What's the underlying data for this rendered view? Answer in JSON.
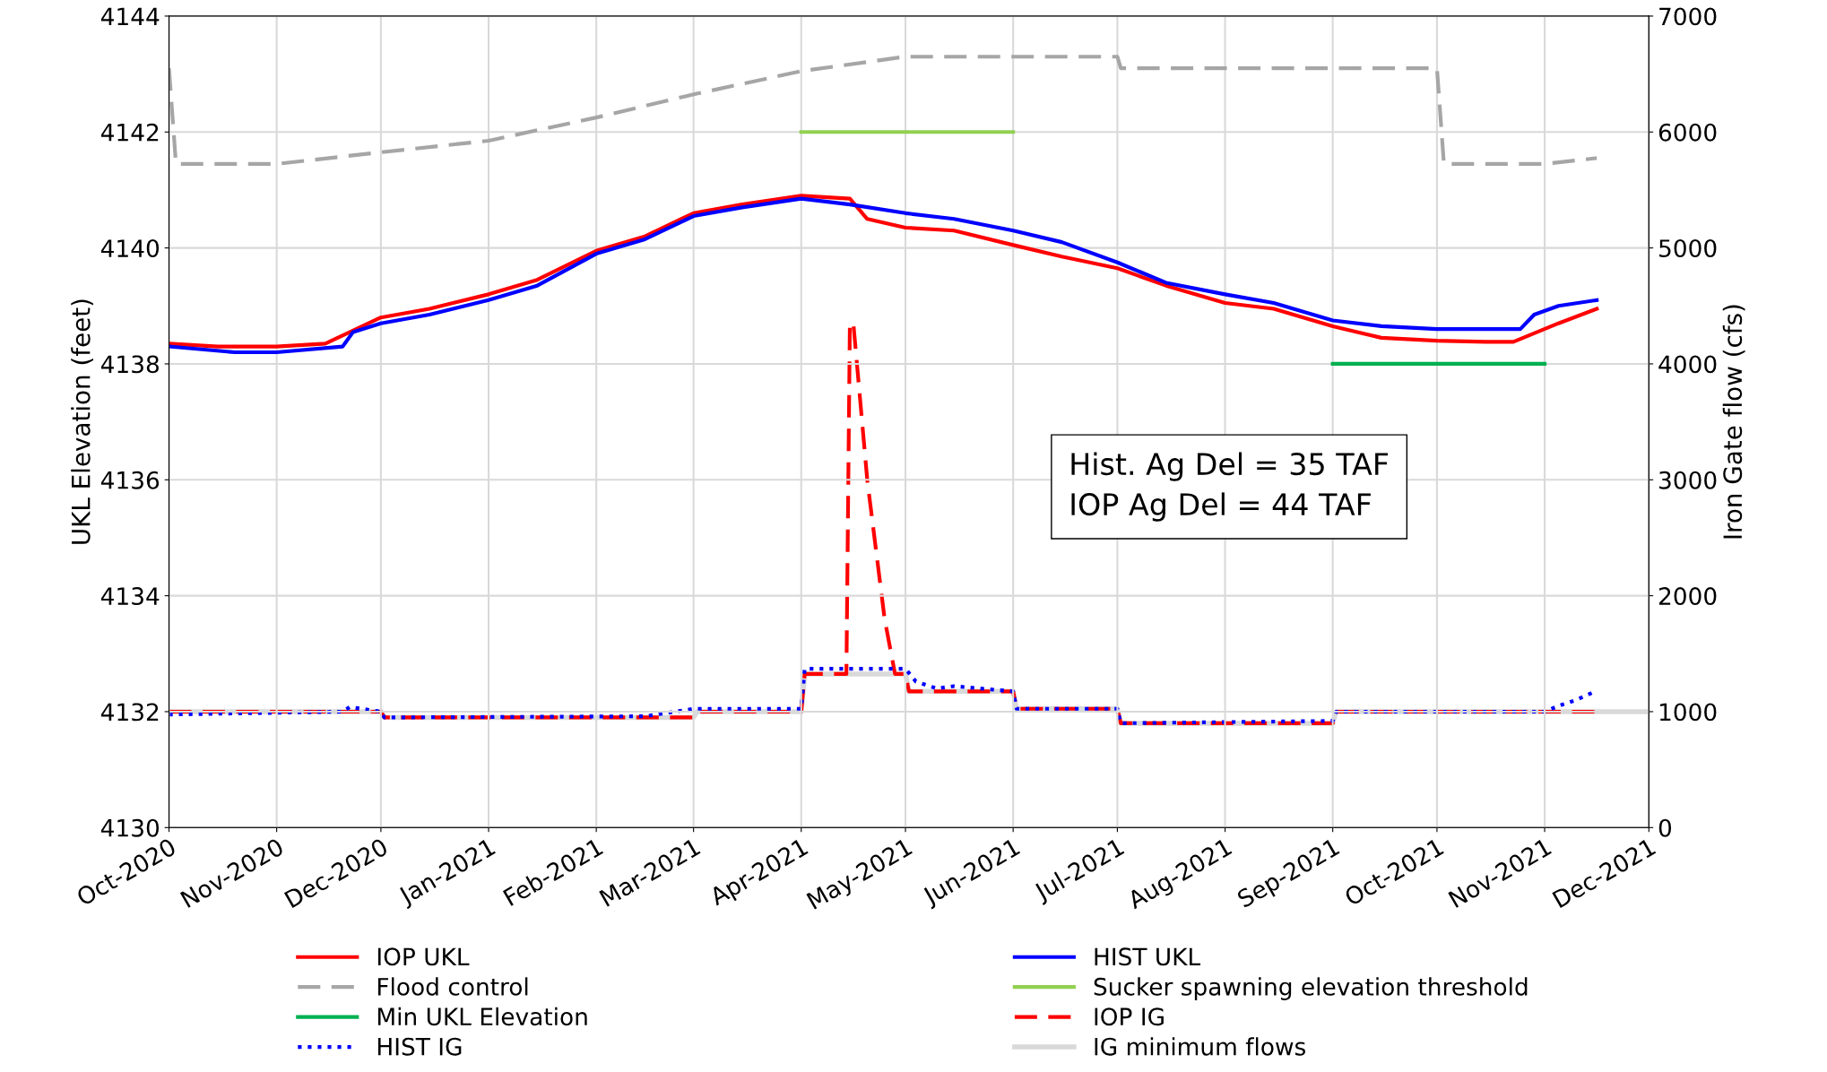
{
  "chart_data": {
    "type": "line",
    "ylabel": "UKL Elevation (feet)",
    "y2label": "Iron Gate flow (cfs)",
    "xlim": [
      "2020-10-01",
      "2021-12-01"
    ],
    "xticks": [
      {
        "value": "2020-10-01",
        "label": "Oct-2020"
      },
      {
        "value": "2020-11-01",
        "label": "Nov-2020"
      },
      {
        "value": "2020-12-01",
        "label": "Dec-2020"
      },
      {
        "value": "2021-01-01",
        "label": "Jan-2021"
      },
      {
        "value": "2021-02-01",
        "label": "Feb-2021"
      },
      {
        "value": "2021-03-01",
        "label": "Mar-2021"
      },
      {
        "value": "2021-04-01",
        "label": "Apr-2021"
      },
      {
        "value": "2021-05-01",
        "label": "May-2021"
      },
      {
        "value": "2021-06-01",
        "label": "Jun-2021"
      },
      {
        "value": "2021-07-01",
        "label": "Jul-2021"
      },
      {
        "value": "2021-08-01",
        "label": "Aug-2021"
      },
      {
        "value": "2021-09-01",
        "label": "Sep-2021"
      },
      {
        "value": "2021-10-01",
        "label": "Oct-2021"
      },
      {
        "value": "2021-11-01",
        "label": "Nov-2021"
      },
      {
        "value": "2021-12-01",
        "label": "Dec-2021"
      }
    ],
    "ylim": [
      4130,
      4144
    ],
    "yticks": [
      4130,
      4132,
      4134,
      4136,
      4138,
      4140,
      4142,
      4144
    ],
    "y2lim": [
      0,
      7000
    ],
    "y2ticks": [
      0,
      1000,
      2000,
      3000,
      4000,
      5000,
      6000,
      7000
    ],
    "grid": true,
    "legend": "bottom",
    "marker": "none",
    "annotations": [
      "Hist. Ag Del = 35 TAF",
      "IOP Ag Del = 44 TAF"
    ],
    "series": [
      {
        "name": "IOP UKL",
        "color": "#ff0000",
        "line_style": "solid",
        "x": [
          "2020-10-01",
          "2020-10-15",
          "2020-11-01",
          "2020-11-15",
          "2020-12-01",
          "2020-12-15",
          "2021-01-01",
          "2021-01-15",
          "2021-02-01",
          "2021-02-15",
          "2021-03-01",
          "2021-03-15",
          "2021-04-01",
          "2021-04-15",
          "2021-04-20",
          "2021-05-01",
          "2021-05-15",
          "2021-06-01",
          "2021-06-15",
          "2021-07-01",
          "2021-07-15",
          "2021-08-01",
          "2021-08-15",
          "2021-09-01",
          "2021-09-15",
          "2021-10-01",
          "2021-10-15",
          "2021-10-23",
          "2021-11-05",
          "2021-11-16"
        ],
        "values": [
          4138.35,
          4138.3,
          4138.3,
          4138.35,
          4138.8,
          4138.95,
          4139.2,
          4139.45,
          4139.95,
          4140.2,
          4140.6,
          4140.75,
          4140.9,
          4140.85,
          4140.5,
          4140.35,
          4140.3,
          4140.05,
          4139.85,
          4139.65,
          4139.35,
          4139.05,
          4138.95,
          4138.65,
          4138.45,
          4138.4,
          4138.38,
          4138.38,
          4138.7,
          4138.95
        ]
      },
      {
        "name": "HIST UKL",
        "color": "#0000ff",
        "line_style": "solid",
        "x": [
          "2020-10-01",
          "2020-10-20",
          "2020-11-01",
          "2020-11-20",
          "2020-11-23",
          "2020-12-01",
          "2020-12-15",
          "2021-01-01",
          "2021-01-15",
          "2021-02-01",
          "2021-02-15",
          "2021-03-01",
          "2021-03-15",
          "2021-04-01",
          "2021-04-15",
          "2021-05-01",
          "2021-05-15",
          "2021-06-01",
          "2021-06-15",
          "2021-07-01",
          "2021-07-15",
          "2021-08-01",
          "2021-08-15",
          "2021-09-01",
          "2021-09-15",
          "2021-10-01",
          "2021-10-15",
          "2021-10-25",
          "2021-10-29",
          "2021-11-05",
          "2021-11-16"
        ],
        "values": [
          4138.3,
          4138.2,
          4138.2,
          4138.3,
          4138.55,
          4138.7,
          4138.85,
          4139.1,
          4139.35,
          4139.9,
          4140.15,
          4140.55,
          4140.7,
          4140.85,
          4140.75,
          4140.6,
          4140.5,
          4140.3,
          4140.1,
          4139.75,
          4139.4,
          4139.2,
          4139.05,
          4138.75,
          4138.65,
          4138.6,
          4138.6,
          4138.6,
          4138.85,
          4139.0,
          4139.1
        ]
      },
      {
        "name": "Flood control",
        "color": "#a6a6a6",
        "line_style": "dashed",
        "x": [
          "2020-10-01",
          "2020-10-03",
          "2020-11-01",
          "2020-12-01",
          "2021-01-01",
          "2021-02-01",
          "2021-03-01",
          "2021-04-01",
          "2021-05-01",
          "2021-07-01",
          "2021-07-02",
          "2021-10-01",
          "2021-10-03",
          "2021-11-01",
          "2021-11-16"
        ],
        "values": [
          4143.1,
          4141.45,
          4141.45,
          4141.65,
          4141.85,
          4142.25,
          4142.65,
          4143.05,
          4143.3,
          4143.3,
          4143.1,
          4143.1,
          4141.45,
          4141.45,
          4141.55
        ]
      },
      {
        "name": "Sucker spawning elevation threshold",
        "color": "#92d050",
        "line_style": "solid",
        "x": [
          "2021-04-01",
          "2021-06-01"
        ],
        "values": [
          4142,
          4142
        ]
      },
      {
        "name": "Min UKL Elevation",
        "color": "#00b050",
        "line_style": "solid",
        "x": [
          "2021-09-01",
          "2021-11-01"
        ],
        "values": [
          4138,
          4138
        ]
      },
      {
        "name": "IOP IG",
        "color": "#ff0000",
        "line_style": "dashed",
        "axis": "y2",
        "x": [
          "2020-10-01",
          "2020-12-01",
          "2020-12-02",
          "2021-03-01",
          "2021-03-02",
          "2021-04-01",
          "2021-04-02",
          "2021-04-14",
          "2021-04-15",
          "2021-04-16",
          "2021-04-20",
          "2021-04-25",
          "2021-04-28",
          "2021-05-01",
          "2021-05-02",
          "2021-06-01",
          "2021-06-02",
          "2021-07-01",
          "2021-07-02",
          "2021-09-01",
          "2021-09-02",
          "2021-11-16"
        ],
        "values": [
          1000,
          1000,
          950,
          950,
          1000,
          1000,
          1325,
          1325,
          4350,
          4350,
          3000,
          1800,
          1325,
          1325,
          1175,
          1175,
          1025,
          1025,
          900,
          900,
          1000,
          1000
        ]
      },
      {
        "name": "HIST IG",
        "color": "#0000ff",
        "line_style": "dotted",
        "axis": "y2",
        "x": [
          "2020-10-01",
          "2020-11-20",
          "2020-11-22",
          "2020-12-01",
          "2020-12-02",
          "2021-02-15",
          "2021-03-01",
          "2021-04-01",
          "2021-04-02",
          "2021-05-01",
          "2021-05-04",
          "2021-05-10",
          "2021-05-15",
          "2021-06-01",
          "2021-06-02",
          "2021-07-01",
          "2021-07-02",
          "2021-08-01",
          "2021-09-01",
          "2021-09-02",
          "2021-11-01",
          "2021-11-05",
          "2021-11-10",
          "2021-11-16"
        ],
        "values": [
          975,
          1000,
          1040,
          1000,
          950,
          960,
          1025,
          1025,
          1370,
          1370,
          1260,
          1200,
          1220,
          1175,
          1025,
          1025,
          900,
          910,
          920,
          1000,
          1000,
          1050,
          1100,
          1180
        ]
      },
      {
        "name": "IG minimum flows",
        "color": "#d9d9d9",
        "line_style": "solid",
        "axis": "y2",
        "x": [
          "2020-10-01",
          "2020-12-01",
          "2020-12-02",
          "2021-03-01",
          "2021-03-02",
          "2021-04-01",
          "2021-04-02",
          "2021-05-01",
          "2021-05-02",
          "2021-06-01",
          "2021-06-02",
          "2021-07-01",
          "2021-07-02",
          "2021-09-01",
          "2021-09-02",
          "2021-12-01"
        ],
        "values": [
          1000,
          1000,
          950,
          950,
          1000,
          1000,
          1325,
          1325,
          1175,
          1175,
          1025,
          1025,
          900,
          900,
          1000,
          1000
        ]
      }
    ]
  }
}
